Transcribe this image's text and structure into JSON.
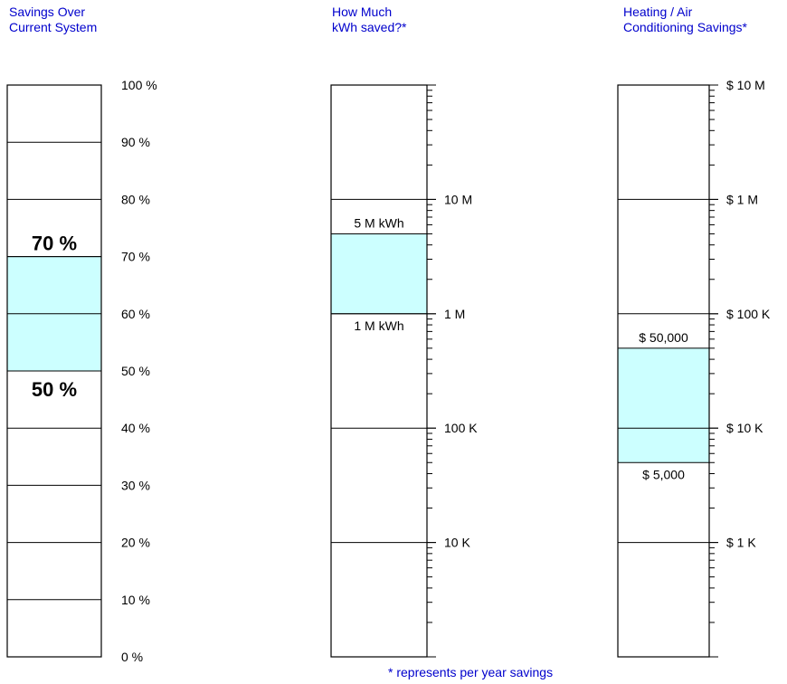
{
  "colors": {
    "title": "#0000cc",
    "band": "#ccffff",
    "line": "#000000",
    "text": "#000000"
  },
  "footnote": "* represents per year savings",
  "chart_data": [
    {
      "type": "bar",
      "title_lines": [
        "Savings Over",
        "Current System"
      ],
      "scale": "linear",
      "ylim": [
        0,
        100
      ],
      "ticks": [
        {
          "value": 0,
          "label": "0 %"
        },
        {
          "value": 10,
          "label": "10 %"
        },
        {
          "value": 20,
          "label": "20 %"
        },
        {
          "value": 30,
          "label": "30 %"
        },
        {
          "value": 40,
          "label": "40 %"
        },
        {
          "value": 50,
          "label": "50 %"
        },
        {
          "value": 60,
          "label": "60 %"
        },
        {
          "value": 70,
          "label": "70 %"
        },
        {
          "value": 80,
          "label": "80 %"
        },
        {
          "value": 90,
          "label": "90 %"
        },
        {
          "value": 100,
          "label": "100 %"
        }
      ],
      "band": [
        50,
        70
      ],
      "annotations": [
        {
          "value": 70,
          "label": "70 %",
          "position": "above",
          "bold": true
        },
        {
          "value": 50,
          "label": "50 %",
          "position": "below",
          "bold": true
        }
      ],
      "minor_ticks": false
    },
    {
      "type": "bar",
      "title_lines": [
        "How Much",
        "kWh saved?*"
      ],
      "scale": "log",
      "ylim": [
        1000,
        100000000
      ],
      "ticks": [
        {
          "value": 10000,
          "label": "10 K"
        },
        {
          "value": 100000,
          "label": "100 K"
        },
        {
          "value": 1000000,
          "label": "1 M"
        },
        {
          "value": 10000000,
          "label": "10 M"
        }
      ],
      "band": [
        1000000,
        5000000
      ],
      "annotations": [
        {
          "value": 5000000,
          "label": "5 M  kWh",
          "position": "above",
          "bold": false
        },
        {
          "value": 1000000,
          "label": "1 M  kWh",
          "position": "below",
          "bold": false
        }
      ],
      "minor_ticks": true
    },
    {
      "type": "bar",
      "title_lines": [
        "Heating / Air",
        "Conditioning Savings*"
      ],
      "scale": "log",
      "ylim": [
        100,
        10000000
      ],
      "ticks": [
        {
          "value": 1000,
          "label": "$ 1 K"
        },
        {
          "value": 10000,
          "label": "$ 10 K"
        },
        {
          "value": 100000,
          "label": "$ 100 K"
        },
        {
          "value": 1000000,
          "label": "$ 1 M"
        },
        {
          "value": 10000000,
          "label": "$ 10 M"
        }
      ],
      "band": [
        5000,
        50000
      ],
      "annotations": [
        {
          "value": 50000,
          "label": "$ 50,000",
          "position": "above",
          "bold": false
        },
        {
          "value": 5000,
          "label": "$ 5,000",
          "position": "below",
          "bold": false
        }
      ],
      "minor_ticks": true
    }
  ]
}
